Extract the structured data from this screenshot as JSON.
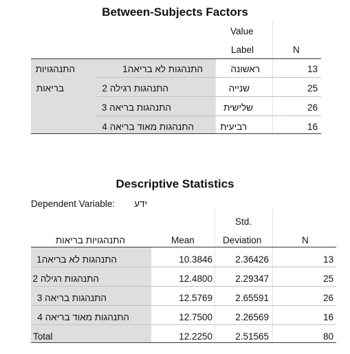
{
  "between": {
    "title": "Between-Subjects Factors",
    "header": {
      "value": "Value",
      "label": "Label",
      "n": "N"
    },
    "factor_line1": "התנהגויות",
    "factor_line2": "בריאות",
    "rows": [
      {
        "value": "התנהגות לא בריאה1",
        "label": "ראשונה",
        "n": "13"
      },
      {
        "value": "התנהגות רגילה 2",
        "label": "שנייה",
        "n": "25"
      },
      {
        "value": "התנהגות בריאה 3",
        "label": "שלישית",
        "n": "26"
      },
      {
        "value": "התנהגות מאוד בריאה 4",
        "label": "רביעית",
        "n": "16"
      }
    ]
  },
  "descriptive": {
    "title": "Descriptive Statistics",
    "dv_label": "Dependent Variable:",
    "dv_value": "ידע",
    "header": {
      "factor": "התנהגויות בריאות",
      "mean": "Mean",
      "std1": "Std.",
      "std2": "Deviation",
      "n": "N"
    },
    "rows": [
      {
        "label": "התנהגות לא בריאה1",
        "mean": "10.3846",
        "sd": "2.36426",
        "n": "13"
      },
      {
        "label": "התנהגות רגילה 2",
        "mean": "12.4800",
        "sd": "2.29347",
        "n": "25"
      },
      {
        "label": "התנהגות בריאה 3",
        "mean": "12.5769",
        "sd": "2.65591",
        "n": "26"
      },
      {
        "label": "התנהגות מאוד בריאה 4",
        "mean": "12.7500",
        "sd": "2.26569",
        "n": "16"
      },
      {
        "label": "Total",
        "mean": "12.2250",
        "sd": "2.51565",
        "n": "80"
      }
    ]
  }
}
